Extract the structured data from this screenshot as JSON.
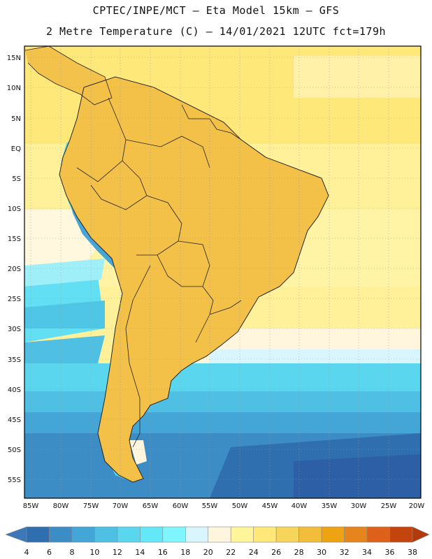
{
  "header": {
    "title_line1": "CPTEC/INPE/MCT –  Eta Model 15km – GFS",
    "title_line2": "2 Metre Temperature (C) – 14/01/2021 12UTC fct=179h"
  },
  "map": {
    "lat_labels": [
      "15N",
      "10N",
      "5N",
      "EQ",
      "5S",
      "10S",
      "15S",
      "20S",
      "25S",
      "30S",
      "35S",
      "40S",
      "45S",
      "50S",
      "55S"
    ],
    "lon_labels": [
      "85W",
      "80W",
      "75W",
      "70W",
      "65W",
      "60W",
      "55W",
      "50W",
      "45W",
      "40W",
      "35W",
      "30W",
      "25W",
      "20W"
    ]
  },
  "colorbar": {
    "labels": [
      "4",
      "6",
      "8",
      "10",
      "12",
      "14",
      "16",
      "18",
      "20",
      "22",
      "24",
      "26",
      "28",
      "30",
      "32",
      "34",
      "36",
      "38"
    ],
    "colors": [
      "#3a78b8",
      "#2f6fb0",
      "#3c8cc6",
      "#43a6d6",
      "#4fc0e3",
      "#5ad6ee",
      "#62e8f7",
      "#7ff5ff",
      "#d9f6ff",
      "#fff6dd",
      "#fff59a",
      "#ffe878",
      "#f7d45a",
      "#f2bd3a",
      "#eea313",
      "#e6841d",
      "#dd611a",
      "#c4440e",
      "#b23a0c"
    ]
  }
}
